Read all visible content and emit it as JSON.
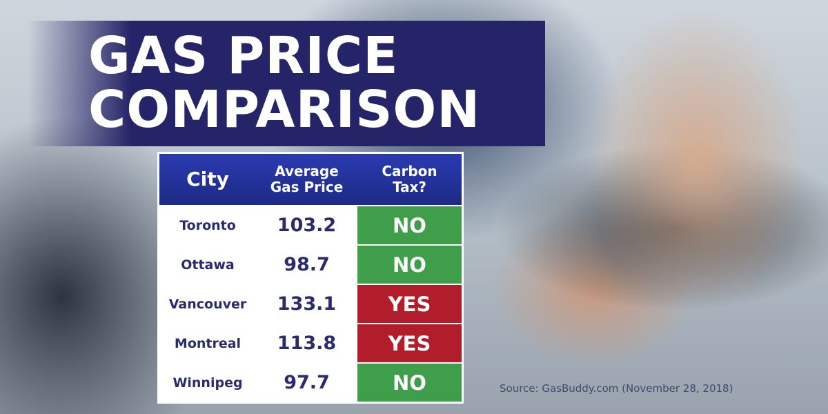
{
  "header": {
    "title_lines": [
      "GAS PRICE",
      "COMPARISON"
    ]
  },
  "table": {
    "columns": [
      "City",
      "Average Gas Price",
      "Carbon Tax?"
    ],
    "rows": [
      [
        "Toronto",
        "103.2",
        "NO"
      ],
      [
        "Ottawa",
        "98.7",
        "NO"
      ],
      [
        "Vancouver",
        "133.1",
        "YES"
      ],
      [
        "Montreal",
        "113.8",
        "YES"
      ],
      [
        "Winnipeg",
        "97.7",
        "NO"
      ]
    ]
  },
  "footer": {
    "source": "Source: GasBuddy.com (November 28, 2018)"
  }
}
